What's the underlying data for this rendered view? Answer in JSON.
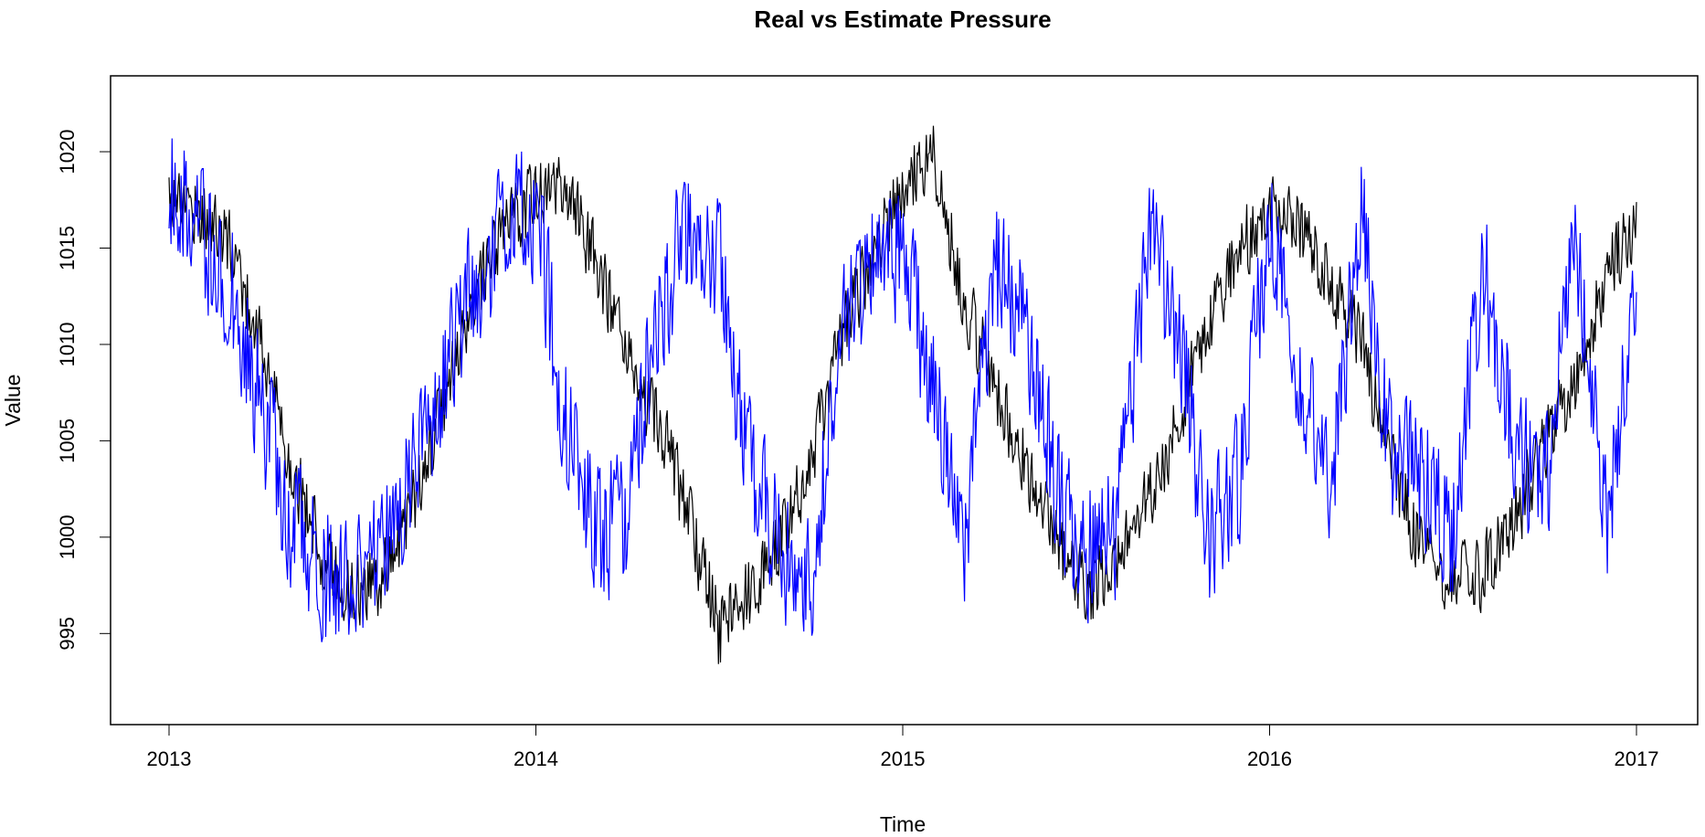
{
  "chart_data": {
    "type": "line",
    "title": "Real vs Estimate Pressure",
    "xlabel": "Time",
    "ylabel": "Value",
    "xlim": [
      2013.0,
      2017.0
    ],
    "ylim": [
      990.7,
      1023.7
    ],
    "x_ticks": [
      2013,
      2014,
      2015,
      2016,
      2017
    ],
    "x_tick_labels": [
      "2013",
      "2014",
      "2015",
      "2016",
      "2017"
    ],
    "y_ticks": [
      995,
      1000,
      1005,
      1010,
      1015,
      1020
    ],
    "y_tick_labels": [
      "995",
      "1000",
      "1005",
      "1010",
      "1015",
      "1020"
    ],
    "grid": false,
    "legend": "none",
    "series": [
      {
        "color": "#000000",
        "amplitude": 2.2,
        "x": [
          2013.0,
          2013.08,
          2013.17,
          2013.25,
          2013.33,
          2013.42,
          2013.5,
          2013.58,
          2013.67,
          2013.75,
          2013.83,
          2013.92,
          2014.0,
          2014.08,
          2014.17,
          2014.25,
          2014.33,
          2014.42,
          2014.5,
          2014.58,
          2014.67,
          2014.75,
          2014.83,
          2014.92,
          2015.0,
          2015.08,
          2015.17,
          2015.25,
          2015.33,
          2015.42,
          2015.5,
          2015.58,
          2015.67,
          2015.75,
          2015.83,
          2015.92,
          2016.0,
          2016.08,
          2016.17,
          2016.25,
          2016.33,
          2016.42,
          2016.5,
          2016.58,
          2016.67,
          2016.75,
          2016.83,
          2016.92,
          2017.0
        ],
        "y": [
          1018,
          1017,
          1015,
          1010,
          1004,
          999,
          997,
          998,
          1002,
          1007,
          1012,
          1016,
          1018,
          1018,
          1014,
          1009,
          1006,
          1001,
          995,
          997,
          1000,
          1004,
          1010,
          1015,
          1018,
          1020,
          1012,
          1008,
          1004,
          1000,
          997,
          999,
          1002,
          1006,
          1011,
          1015,
          1017,
          1016,
          1013,
          1010,
          1004,
          999,
          998,
          998,
          1001,
          1005,
          1008,
          1014,
          1016
        ]
      },
      {
        "color": "#0000ff",
        "amplitude": 4.0,
        "x": [
          2013.0,
          2013.08,
          2013.17,
          2013.25,
          2013.33,
          2013.42,
          2013.5,
          2013.58,
          2013.67,
          2013.75,
          2013.83,
          2013.92,
          2014.0,
          2014.08,
          2014.17,
          2014.25,
          2014.33,
          2014.42,
          2014.5,
          2014.58,
          2014.67,
          2014.75,
          2014.83,
          2014.92,
          2015.0,
          2015.08,
          2015.17,
          2015.25,
          2015.33,
          2015.42,
          2015.5,
          2015.58,
          2015.67,
          2015.75,
          2015.83,
          2015.92,
          2016.0,
          2016.08,
          2016.17,
          2016.25,
          2016.33,
          2016.42,
          2016.5,
          2016.58,
          2016.67,
          2016.75,
          2016.83,
          2016.92,
          2017.0
        ],
        "y": [
          1019,
          1016,
          1013,
          1007,
          1001,
          998,
          997,
          999,
          1003,
          1008,
          1013,
          1016,
          1017,
          1006,
          1000,
          1001,
          1012,
          1016,
          1014,
          1004,
          999,
          998,
          1010,
          1014,
          1015,
          1008,
          1000,
          1014,
          1012,
          1002,
          999,
          1000,
          1015,
          1011,
          1000,
          1003,
          1017,
          1008,
          1003,
          1017,
          1004,
          1003,
          1000,
          1014,
          1005,
          1002,
          1016,
          1000,
          1014
        ]
      }
    ]
  }
}
